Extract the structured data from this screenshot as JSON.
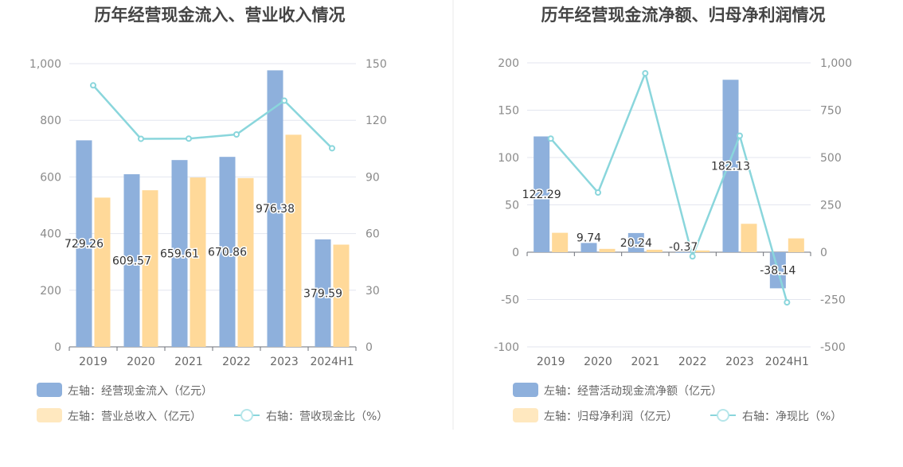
{
  "colors": {
    "blue": "#8eb0dc",
    "yellow": "#ffd999",
    "cyan": "#8ad6dc"
  },
  "chart_data": [
    {
      "type": "bar",
      "title": "历年经营现金流入、营业收入情况",
      "categories": [
        "2019",
        "2020",
        "2021",
        "2022",
        "2023",
        "2024H1"
      ],
      "y_left_ticks": [
        "1,000",
        "800",
        "600",
        "400",
        "200",
        "0"
      ],
      "y_right_ticks": [
        "150",
        "120",
        "90",
        "60",
        "30",
        "0"
      ],
      "ylim_left": [
        0,
        1000
      ],
      "ylim_right": [
        0,
        150
      ],
      "grid": true,
      "legend_position": "bottom",
      "series": [
        {
          "name": "左轴：经营现金流入（亿元）",
          "axis": "left",
          "kind": "bar",
          "values": [
            729.26,
            609.57,
            659.61,
            670.86,
            976.38,
            379.59
          ],
          "labels": [
            "729.26",
            "609.57",
            "659.61",
            "670.86",
            "976.38",
            "379.59"
          ]
        },
        {
          "name": "左轴：营业总收入（亿元）",
          "axis": "left",
          "kind": "bar",
          "values": [
            527,
            553,
            598,
            596,
            749,
            361
          ]
        },
        {
          "name": "右轴：营收现金比（%）",
          "axis": "right",
          "kind": "line",
          "values": [
            138.5,
            110.2,
            110.3,
            112.5,
            130.4,
            105.2
          ]
        }
      ]
    },
    {
      "type": "bar",
      "title": "历年经营现金流净额、归母净利润情况",
      "categories": [
        "2019",
        "2020",
        "2021",
        "2022",
        "2023",
        "2024H1"
      ],
      "y_left_ticks": [
        "200",
        "150",
        "100",
        "50",
        "0",
        "-50",
        "-100"
      ],
      "y_right_ticks": [
        "1,000",
        "750",
        "500",
        "250",
        "0",
        "-250",
        "-500"
      ],
      "ylim_left": [
        -100,
        200
      ],
      "ylim_right": [
        -500,
        1000
      ],
      "grid": true,
      "legend_position": "bottom",
      "series": [
        {
          "name": "左轴：经营活动现金流净额（亿元）",
          "axis": "left",
          "kind": "bar",
          "values": [
            122.29,
            9.74,
            20.24,
            -0.37,
            182.13,
            -38.14
          ],
          "labels": [
            "122.29",
            "9.74",
            "20.24",
            "-0.37",
            "182.13",
            "-38.14"
          ]
        },
        {
          "name": "左轴：归母净利润（亿元）",
          "axis": "left",
          "kind": "bar",
          "values": [
            20.5,
            3.5,
            2.6,
            1.8,
            30.0,
            14.6
          ]
        },
        {
          "name": "右轴：净现比（%）",
          "axis": "right",
          "kind": "line",
          "values": [
            600,
            315,
            945,
            -22,
            615,
            -265
          ]
        }
      ]
    }
  ]
}
